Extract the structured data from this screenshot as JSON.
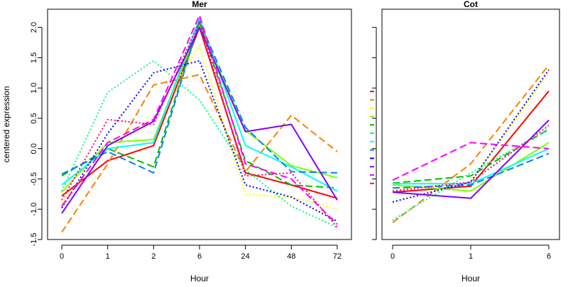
{
  "chart_data": [
    {
      "type": "line",
      "title": "Mer",
      "xlabel": "Hour",
      "ylabel": "centered expression",
      "categories": [
        "0",
        "1",
        "2",
        "6",
        "24",
        "48",
        "72"
      ],
      "ylim": [
        -1.5,
        2.3
      ],
      "y_ticks": [
        "-1.5",
        "-1.0",
        "-0.5",
        "0.0",
        "0.5",
        "1.0",
        "1.5",
        "2.0"
      ],
      "series": [
        {
          "color": "#ff0000",
          "dash": "solid",
          "values": [
            -0.78,
            -0.2,
            0.05,
            2.0,
            -0.4,
            -0.6,
            -0.82
          ]
        },
        {
          "color": "#ff8000",
          "dash": "long",
          "values": [
            -1.38,
            -0.25,
            1.05,
            1.22,
            -0.38,
            0.55,
            -0.05
          ]
        },
        {
          "color": "#ffff00",
          "dash": "dot",
          "values": [
            -0.9,
            0.05,
            0.5,
            1.7,
            -0.75,
            -0.8,
            -1.0
          ]
        },
        {
          "color": "#80ff00",
          "dash": "solid",
          "values": [
            -0.72,
            0.1,
            0.15,
            2.05,
            0.3,
            -0.28,
            -0.48
          ]
        },
        {
          "color": "#00c000",
          "dash": "long",
          "values": [
            -0.45,
            0.0,
            -0.3,
            2.1,
            -0.2,
            -0.6,
            -0.65
          ]
        },
        {
          "color": "#00ff80",
          "dash": "dot",
          "values": [
            -0.7,
            0.93,
            1.45,
            0.8,
            -0.35,
            -0.95,
            -1.3
          ]
        },
        {
          "color": "#00ffff",
          "dash": "solid",
          "values": [
            -0.6,
            0.0,
            0.1,
            2.15,
            0.05,
            -0.3,
            -0.7
          ]
        },
        {
          "color": "#0080ff",
          "dash": "long",
          "values": [
            -0.42,
            -0.05,
            -0.4,
            2.1,
            0.35,
            -0.38,
            -0.4
          ]
        },
        {
          "color": "#0000ff",
          "dash": "dot",
          "values": [
            -0.98,
            0.25,
            1.25,
            1.45,
            -0.6,
            -0.8,
            -1.2
          ]
        },
        {
          "color": "#8000ff",
          "dash": "solid",
          "values": [
            -1.07,
            0.05,
            0.45,
            2.0,
            0.28,
            0.4,
            -0.85
          ]
        },
        {
          "color": "#ff00ff",
          "dash": "long",
          "values": [
            -0.95,
            0.1,
            0.48,
            2.2,
            -0.25,
            -0.5,
            -1.25
          ]
        },
        {
          "color": "#ff0080",
          "dash": "dot",
          "values": [
            -0.85,
            0.48,
            0.4,
            2.1,
            -0.45,
            -0.4,
            -1.3
          ]
        }
      ]
    },
    {
      "type": "line",
      "title": "Cot",
      "xlabel": "Hour",
      "ylabel": "",
      "categories": [
        "0",
        "1",
        "6"
      ],
      "ylim": [
        -1.5,
        2.3
      ],
      "series": [
        {
          "color": "#ff0000",
          "dash": "solid",
          "values": [
            -0.72,
            -0.62,
            0.95
          ]
        },
        {
          "color": "#ff8000",
          "dash": "long",
          "values": [
            -1.22,
            -0.25,
            1.38
          ]
        },
        {
          "color": "#ffff00",
          "dash": "dot",
          "values": [
            -0.68,
            -0.55,
            1.25
          ]
        },
        {
          "color": "#80ff00",
          "dash": "solid",
          "values": [
            -0.6,
            -0.7,
            0.1
          ]
        },
        {
          "color": "#00c000",
          "dash": "long",
          "values": [
            -0.57,
            -0.45,
            0.32
          ]
        },
        {
          "color": "#00ff80",
          "dash": "dot",
          "values": [
            -1.18,
            -0.4,
            0.32
          ]
        },
        {
          "color": "#00ffff",
          "dash": "solid",
          "values": [
            -0.58,
            -0.58,
            0.0
          ]
        },
        {
          "color": "#0080ff",
          "dash": "long",
          "values": [
            -0.65,
            -0.6,
            -0.08
          ]
        },
        {
          "color": "#0000ff",
          "dash": "dot",
          "values": [
            -0.88,
            -0.55,
            1.3
          ]
        },
        {
          "color": "#8000ff",
          "dash": "solid",
          "values": [
            -0.72,
            -0.82,
            0.47
          ]
        },
        {
          "color": "#ff00ff",
          "dash": "long",
          "values": [
            -0.52,
            0.1,
            0.0
          ]
        },
        {
          "color": "#ff0080",
          "dash": "dot",
          "values": [
            -0.7,
            -0.55,
            0.38
          ]
        }
      ]
    }
  ],
  "legend": {
    "colors": [
      "#ff0000",
      "#ff8000",
      "#ffff00",
      "#80ff00",
      "#00c000",
      "#00ff80",
      "#00ffff",
      "#0080ff",
      "#0000ff",
      "#8000ff",
      "#ff00ff",
      "#ff0080"
    ]
  }
}
